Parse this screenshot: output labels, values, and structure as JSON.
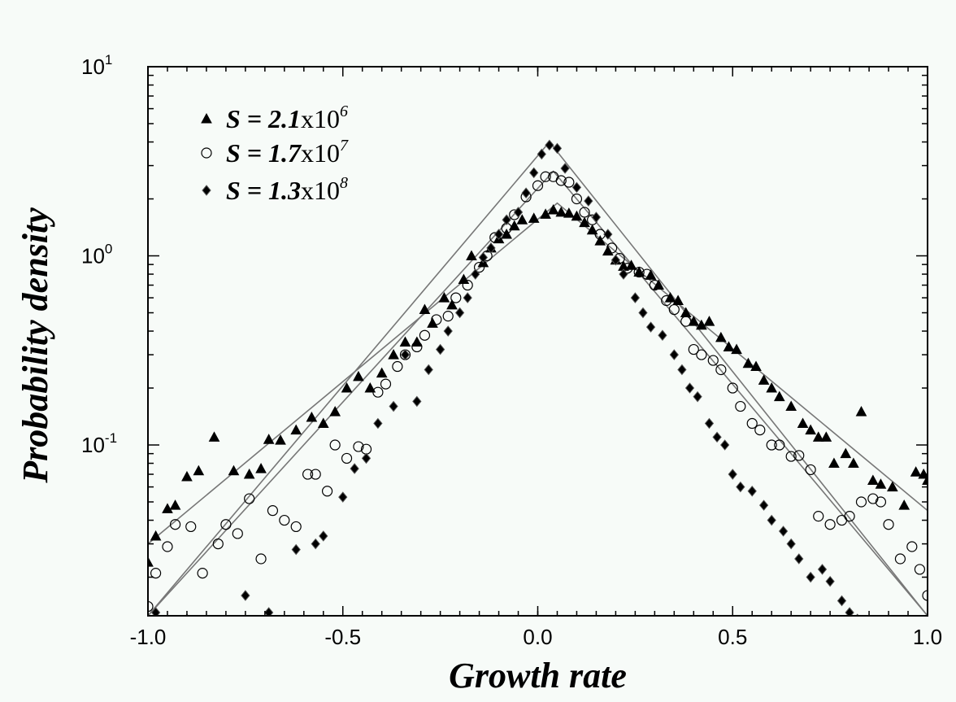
{
  "chart_data": {
    "type": "scatter",
    "title": "",
    "xlabel": "Growth rate",
    "ylabel": "Probability density",
    "xlim": [
      -1.0,
      1.0
    ],
    "ylim": [
      0.0125,
      10
    ],
    "yscale": "log",
    "x_ticks": [
      "-1.0",
      "-0.5",
      "0.0",
      "0.5",
      "1.0"
    ],
    "y_ticks": [
      {
        "base": "10",
        "exp": "1"
      },
      {
        "base": "10",
        "exp": "0"
      },
      {
        "base": "10",
        "exp": "-1"
      }
    ],
    "grid": false,
    "legend_position": "top-left",
    "series": [
      {
        "name": "S = 2.1x10^6",
        "label_prefix": "S = 2.1",
        "label_mid": "x10",
        "label_exp": "6",
        "marker": "triangle",
        "points": [
          [
            -1.0,
            0.024
          ],
          [
            -0.98,
            0.033
          ],
          [
            -0.95,
            0.046
          ],
          [
            -0.93,
            0.048
          ],
          [
            -0.9,
            0.068
          ],
          [
            -0.87,
            0.073
          ],
          [
            -0.83,
            0.11
          ],
          [
            -0.78,
            0.073
          ],
          [
            -0.74,
            0.07
          ],
          [
            -0.71,
            0.075
          ],
          [
            -0.69,
            0.107
          ],
          [
            -0.66,
            0.106
          ],
          [
            -0.62,
            0.12
          ],
          [
            -0.58,
            0.14
          ],
          [
            -0.55,
            0.13
          ],
          [
            -0.52,
            0.15
          ],
          [
            -0.49,
            0.2
          ],
          [
            -0.46,
            0.23
          ],
          [
            -0.43,
            0.2
          ],
          [
            -0.4,
            0.24
          ],
          [
            -0.37,
            0.3
          ],
          [
            -0.34,
            0.35
          ],
          [
            -0.31,
            0.35
          ],
          [
            -0.29,
            0.52
          ],
          [
            -0.27,
            0.44
          ],
          [
            -0.24,
            0.6
          ],
          [
            -0.22,
            0.55
          ],
          [
            -0.19,
            0.75
          ],
          [
            -0.17,
            1.0
          ],
          [
            -0.14,
            0.92
          ],
          [
            -0.12,
            1.1
          ],
          [
            -0.1,
            1.23
          ],
          [
            -0.08,
            1.3
          ],
          [
            -0.06,
            1.44
          ],
          [
            -0.04,
            1.55
          ],
          [
            -0.01,
            1.58
          ],
          [
            0.02,
            1.66
          ],
          [
            0.04,
            1.75
          ],
          [
            0.06,
            1.7
          ],
          [
            0.08,
            1.68
          ],
          [
            0.1,
            1.62
          ],
          [
            0.12,
            1.5
          ],
          [
            0.14,
            1.37
          ],
          [
            0.16,
            1.2
          ],
          [
            0.18,
            1.06
          ],
          [
            0.2,
            0.95
          ],
          [
            0.22,
            0.88
          ],
          [
            0.24,
            0.89
          ],
          [
            0.26,
            0.82
          ],
          [
            0.29,
            0.79
          ],
          [
            0.31,
            0.7
          ],
          [
            0.34,
            0.6
          ],
          [
            0.36,
            0.58
          ],
          [
            0.38,
            0.5
          ],
          [
            0.4,
            0.45
          ],
          [
            0.42,
            0.43
          ],
          [
            0.44,
            0.45
          ],
          [
            0.47,
            0.37
          ],
          [
            0.49,
            0.33
          ],
          [
            0.51,
            0.32
          ],
          [
            0.54,
            0.27
          ],
          [
            0.56,
            0.26
          ],
          [
            0.58,
            0.22
          ],
          [
            0.6,
            0.2
          ],
          [
            0.62,
            0.18
          ],
          [
            0.65,
            0.16
          ],
          [
            0.68,
            0.13
          ],
          [
            0.7,
            0.12
          ],
          [
            0.72,
            0.11
          ],
          [
            0.74,
            0.11
          ],
          [
            0.76,
            0.08
          ],
          [
            0.79,
            0.09
          ],
          [
            0.81,
            0.08
          ],
          [
            0.83,
            0.15
          ],
          [
            0.86,
            0.065
          ],
          [
            0.88,
            0.062
          ],
          [
            0.91,
            0.06
          ],
          [
            0.94,
            0.048
          ],
          [
            0.97,
            0.072
          ],
          [
            0.99,
            0.07
          ],
          [
            1.0,
            0.065
          ]
        ]
      },
      {
        "name": "S = 1.7x10^7",
        "label_prefix": "S = 1.7",
        "label_mid": "x10",
        "label_exp": "7",
        "marker": "circle",
        "points": [
          [
            -1.0,
            0.014
          ],
          [
            -0.98,
            0.021
          ],
          [
            -0.95,
            0.029
          ],
          [
            -0.93,
            0.038
          ],
          [
            -0.89,
            0.037
          ],
          [
            -0.86,
            0.021
          ],
          [
            -0.82,
            0.03
          ],
          [
            -0.8,
            0.038
          ],
          [
            -0.77,
            0.034
          ],
          [
            -0.74,
            0.052
          ],
          [
            -0.71,
            0.025
          ],
          [
            -0.68,
            0.045
          ],
          [
            -0.65,
            0.04
          ],
          [
            -0.62,
            0.037
          ],
          [
            -0.59,
            0.07
          ],
          [
            -0.57,
            0.07
          ],
          [
            -0.54,
            0.057
          ],
          [
            -0.52,
            0.1
          ],
          [
            -0.49,
            0.085
          ],
          [
            -0.46,
            0.098
          ],
          [
            -0.44,
            0.095
          ],
          [
            -0.41,
            0.19
          ],
          [
            -0.39,
            0.21
          ],
          [
            -0.36,
            0.26
          ],
          [
            -0.34,
            0.3
          ],
          [
            -0.31,
            0.33
          ],
          [
            -0.29,
            0.38
          ],
          [
            -0.26,
            0.46
          ],
          [
            -0.23,
            0.48
          ],
          [
            -0.21,
            0.6
          ],
          [
            -0.18,
            0.7
          ],
          [
            -0.15,
            0.87
          ],
          [
            -0.13,
            1.0
          ],
          [
            -0.11,
            1.25
          ],
          [
            -0.08,
            1.4
          ],
          [
            -0.06,
            1.65
          ],
          [
            -0.03,
            2.05
          ],
          [
            0.0,
            2.35
          ],
          [
            0.02,
            2.62
          ],
          [
            0.04,
            2.62
          ],
          [
            0.06,
            2.5
          ],
          [
            0.08,
            2.45
          ],
          [
            0.1,
            2.0
          ],
          [
            0.12,
            1.7
          ],
          [
            0.14,
            1.55
          ],
          [
            0.16,
            1.3
          ],
          [
            0.19,
            1.1
          ],
          [
            0.21,
            0.97
          ],
          [
            0.23,
            0.86
          ],
          [
            0.26,
            0.82
          ],
          [
            0.28,
            0.8
          ],
          [
            0.3,
            0.7
          ],
          [
            0.33,
            0.58
          ],
          [
            0.35,
            0.52
          ],
          [
            0.38,
            0.45
          ],
          [
            0.4,
            0.32
          ],
          [
            0.42,
            0.3
          ],
          [
            0.45,
            0.28
          ],
          [
            0.47,
            0.25
          ],
          [
            0.5,
            0.2
          ],
          [
            0.52,
            0.16
          ],
          [
            0.55,
            0.13
          ],
          [
            0.57,
            0.12
          ],
          [
            0.6,
            0.1
          ],
          [
            0.62,
            0.1
          ],
          [
            0.65,
            0.087
          ],
          [
            0.67,
            0.088
          ],
          [
            0.7,
            0.074
          ],
          [
            0.72,
            0.042
          ],
          [
            0.75,
            0.038
          ],
          [
            0.78,
            0.04
          ],
          [
            0.8,
            0.042
          ],
          [
            0.83,
            0.05
          ],
          [
            0.86,
            0.052
          ],
          [
            0.88,
            0.05
          ],
          [
            0.9,
            0.038
          ],
          [
            0.93,
            0.025
          ],
          [
            0.96,
            0.029
          ],
          [
            0.98,
            0.022
          ],
          [
            1.0,
            0.016
          ]
        ]
      },
      {
        "name": "S = 1.3x10^8",
        "label_prefix": "S = 1.3",
        "label_mid": "x10",
        "label_exp": "8",
        "marker": "diamond",
        "points": [
          [
            -0.98,
            0.013
          ],
          [
            -0.9,
            0.012
          ],
          [
            -0.75,
            0.016
          ],
          [
            -0.69,
            0.013
          ],
          [
            -0.62,
            0.028
          ],
          [
            -0.57,
            0.03
          ],
          [
            -0.55,
            0.033
          ],
          [
            -0.5,
            0.053
          ],
          [
            -0.47,
            0.075
          ],
          [
            -0.44,
            0.085
          ],
          [
            -0.41,
            0.13
          ],
          [
            -0.37,
            0.16
          ],
          [
            -0.34,
            0.3
          ],
          [
            -0.31,
            0.17
          ],
          [
            -0.28,
            0.25
          ],
          [
            -0.25,
            0.32
          ],
          [
            -0.23,
            0.4
          ],
          [
            -0.2,
            0.5
          ],
          [
            -0.18,
            0.6
          ],
          [
            -0.16,
            0.8
          ],
          [
            -0.14,
            0.98
          ],
          [
            -0.12,
            1.1
          ],
          [
            -0.1,
            1.3
          ],
          [
            -0.08,
            1.55
          ],
          [
            -0.05,
            1.7
          ],
          [
            -0.03,
            2.15
          ],
          [
            -0.01,
            2.75
          ],
          [
            0.01,
            3.45
          ],
          [
            0.03,
            3.85
          ],
          [
            0.05,
            3.7
          ],
          [
            0.07,
            2.9
          ],
          [
            0.1,
            2.3
          ],
          [
            0.13,
            1.95
          ],
          [
            0.15,
            1.6
          ],
          [
            0.18,
            1.3
          ],
          [
            0.2,
            0.95
          ],
          [
            0.22,
            0.8
          ],
          [
            0.25,
            0.6
          ],
          [
            0.27,
            0.5
          ],
          [
            0.29,
            0.42
          ],
          [
            0.32,
            0.38
          ],
          [
            0.35,
            0.3
          ],
          [
            0.37,
            0.25
          ],
          [
            0.39,
            0.2
          ],
          [
            0.41,
            0.18
          ],
          [
            0.44,
            0.13
          ],
          [
            0.46,
            0.11
          ],
          [
            0.48,
            0.1
          ],
          [
            0.5,
            0.07
          ],
          [
            0.52,
            0.06
          ],
          [
            0.55,
            0.057
          ],
          [
            0.58,
            0.048
          ],
          [
            0.6,
            0.04
          ],
          [
            0.63,
            0.035
          ],
          [
            0.65,
            0.03
          ],
          [
            0.67,
            0.025
          ],
          [
            0.7,
            0.02
          ],
          [
            0.73,
            0.022
          ],
          [
            0.75,
            0.019
          ],
          [
            0.78,
            0.015
          ],
          [
            0.8,
            0.013
          ],
          [
            0.82,
            0.012
          ]
        ]
      }
    ],
    "fit_lines": [
      {
        "name": "fit-2.1e6",
        "peak_x": 0.05,
        "peak_y": 1.9,
        "left_end_y": 0.03,
        "right_end_y": 0.045
      },
      {
        "name": "fit-1.7e7",
        "peak_x": 0.04,
        "peak_y": 2.8,
        "left_end_y": 0.0125,
        "right_end_y": 0.0125
      },
      {
        "name": "fit-1.3e8",
        "peak_x": 0.03,
        "peak_y": 4.0,
        "left_end_y": 0.0125,
        "right_end_y": 0.0125
      }
    ]
  }
}
